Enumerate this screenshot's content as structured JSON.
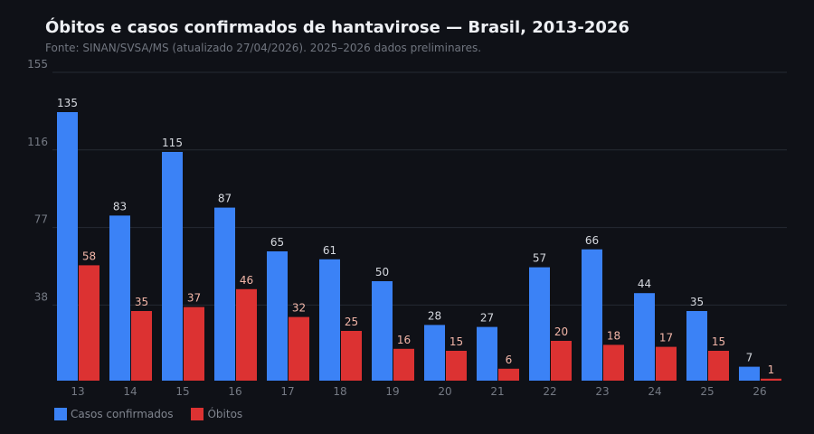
{
  "title": "Óbitos e casos confirmados de hantavirose — Brasil, 2013-2026",
  "subtitle": "Fonte: SINAN/SVSA/MS (atualizado 27/04/2026). 2025–2026 dados preliminares.",
  "colors": {
    "casos": "#3b82f6",
    "obitos": "#dc3232",
    "grid": "#262a33",
    "tick": "#757a84",
    "label_casos": "#d6d9df",
    "label_obitos": "#f2b6a8"
  },
  "chart_data": {
    "type": "bar",
    "title": "Óbitos e casos confirmados de hantavirose — Brasil, 2013-2026",
    "categories": [
      "13",
      "14",
      "15",
      "16",
      "17",
      "18",
      "19",
      "20",
      "21",
      "22",
      "23",
      "24",
      "25",
      "26"
    ],
    "series": [
      {
        "name": "Casos confirmados",
        "values": [
          135,
          83,
          115,
          87,
          65,
          61,
          50,
          28,
          27,
          57,
          66,
          44,
          35,
          7
        ]
      },
      {
        "name": "Óbitos",
        "values": [
          58,
          35,
          37,
          46,
          32,
          25,
          16,
          15,
          6,
          20,
          18,
          17,
          15,
          1
        ]
      }
    ],
    "yticks": [
      "155",
      "116",
      "77",
      "38"
    ],
    "ylim": [
      0,
      155
    ],
    "grid": true,
    "legend": "bottom-left"
  },
  "legend": {
    "casos_label": "Casos confirmados",
    "obitos_label": "Óbitos"
  }
}
